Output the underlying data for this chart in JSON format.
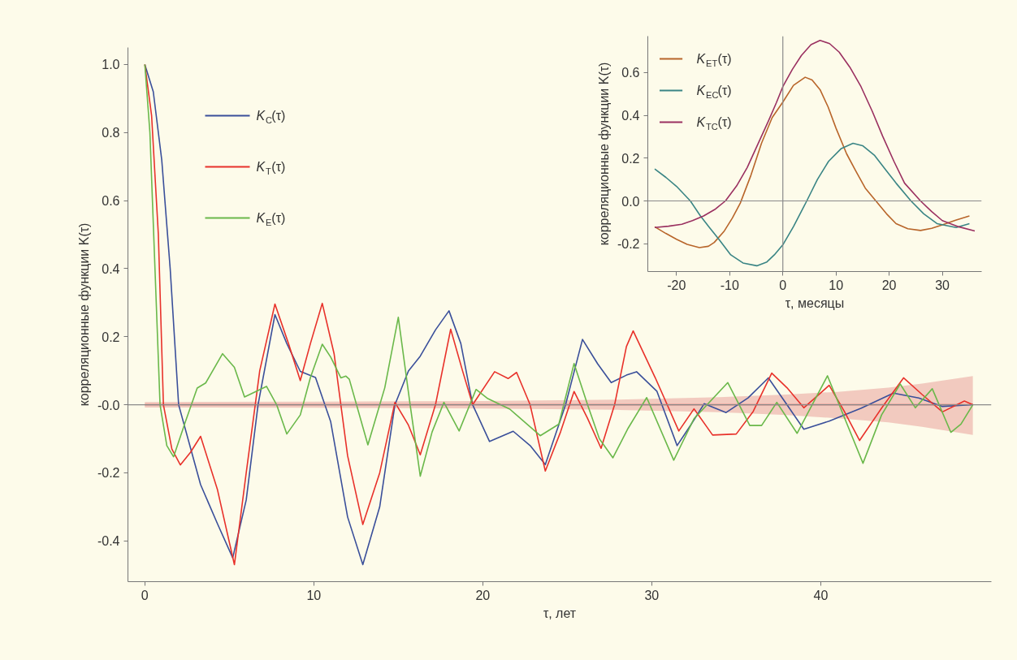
{
  "chart_data": [
    {
      "type": "line",
      "xlabel": "τ, лет",
      "ylabel": "корреляционные функции K(τ)",
      "xlim": [
        -1.0,
        50.1
      ],
      "ylim": [
        -0.52,
        1.05
      ],
      "xticks": [
        0,
        10,
        20,
        30,
        40
      ],
      "yticks": [
        {
          "value": -0.4,
          "label": "-0.4"
        },
        {
          "value": -0.2,
          "label": "-0.2"
        },
        {
          "value": 0,
          "label": "-0.0"
        },
        {
          "value": 0.2,
          "label": "0.2"
        },
        {
          "value": 0.4,
          "label": "0.4"
        },
        {
          "value": 0.6,
          "label": "0.6"
        },
        {
          "value": 0.8,
          "label": "0.8"
        },
        {
          "value": 1.0,
          "label": "1.0"
        }
      ],
      "legend": "top left",
      "ref_lines": [
        {
          "axis": "y",
          "value": 0,
          "color": "#8a8a8a"
        }
      ],
      "series": [
        {
          "color": "#e89a94",
          "x": [
            0,
            10,
            20,
            28,
            34,
            38,
            41,
            44,
            46,
            49
          ],
          "values": [
            0,
            0,
            0,
            0,
            0,
            0,
            0,
            0,
            0,
            0
          ],
          "lower": [
            -0.008,
            -0.009,
            -0.011,
            -0.015,
            -0.022,
            -0.03,
            -0.04,
            -0.052,
            -0.065,
            -0.089
          ],
          "upper": [
            0.008,
            0.009,
            0.011,
            0.015,
            0.022,
            0.03,
            0.038,
            0.05,
            0.062,
            0.084
          ]
        },
        {
          "name": "K$_{C}$(τ)",
          "color": "#3a4f9a",
          "x": [
            0,
            0.5,
            1.0,
            1.5,
            2.0,
            3.3,
            4.3,
            5.2,
            6.0,
            6.7,
            7.7,
            8.4,
            9.2,
            10.1,
            11.0,
            12.0,
            12.9,
            13.9,
            14.8,
            15.6,
            16.3,
            17.2,
            18.0,
            18.7,
            19.4,
            20.4,
            21.8,
            22.8,
            23.7,
            24.9,
            25.9,
            26.8,
            27.6,
            28.5,
            29.1,
            30.3,
            31.5,
            32.3,
            33.1,
            34.4,
            35.7,
            36.9,
            38.0,
            39.0,
            40.5,
            42.4,
            44.3,
            45.8,
            47.2,
            49.0
          ],
          "values": [
            1.0,
            0.92,
            0.72,
            0.4,
            0.0,
            -0.235,
            -0.35,
            -0.45,
            -0.28,
            0.0,
            0.265,
            0.18,
            0.098,
            0.08,
            -0.05,
            -0.33,
            -0.47,
            -0.3,
            0.0,
            0.099,
            0.143,
            0.22,
            0.276,
            0.18,
            0.0,
            -0.108,
            -0.078,
            -0.12,
            -0.176,
            0.0,
            0.192,
            0.12,
            0.065,
            0.087,
            0.097,
            0.04,
            -0.12,
            -0.06,
            0.003,
            -0.023,
            0.02,
            0.079,
            0.0,
            -0.072,
            -0.048,
            -0.01,
            0.034,
            0.02,
            -0.005,
            0.0
          ]
        },
        {
          "name": "K$_{T}$(τ)",
          "color": "#e8312a",
          "x": [
            0,
            0.4,
            0.8,
            1.1,
            1.6,
            2.1,
            2.7,
            3.3,
            4.3,
            5.3,
            6.0,
            6.8,
            7.7,
            8.5,
            9.2,
            9.8,
            10.5,
            11.2,
            12.0,
            12.9,
            13.9,
            14.8,
            15.6,
            16.3,
            17.2,
            18.1,
            18.8,
            19.4,
            20.7,
            21.5,
            22.0,
            22.8,
            23.7,
            24.6,
            25.4,
            26.2,
            27.0,
            27.8,
            28.5,
            28.9,
            30.2,
            31.6,
            32.5,
            33.6,
            35.0,
            36.0,
            37.1,
            38.0,
            39.0,
            40.5,
            41.4,
            42.3,
            43.6,
            44.9,
            46.0,
            47.2,
            48.5,
            49.0
          ],
          "values": [
            1.0,
            0.85,
            0.5,
            0.0,
            -0.13,
            -0.177,
            -0.14,
            -0.093,
            -0.25,
            -0.47,
            -0.2,
            0.1,
            0.296,
            0.18,
            0.071,
            0.18,
            0.298,
            0.15,
            -0.15,
            -0.352,
            -0.2,
            0.007,
            -0.06,
            -0.147,
            0.0,
            0.222,
            0.1,
            0.0,
            0.097,
            0.077,
            0.095,
            0.0,
            -0.195,
            -0.08,
            0.039,
            -0.04,
            -0.128,
            0.0,
            0.171,
            0.217,
            0.08,
            -0.077,
            -0.012,
            -0.089,
            -0.086,
            -0.02,
            0.093,
            0.05,
            -0.009,
            0.057,
            -0.02,
            -0.105,
            -0.01,
            0.079,
            0.03,
            -0.021,
            0.011,
            0.0
          ]
        },
        {
          "name": "K$_{E}$(τ)",
          "color": "#6ab84a",
          "x": [
            0,
            0.3,
            0.6,
            0.9,
            1.3,
            1.7,
            2.4,
            3.1,
            3.6,
            4.6,
            5.3,
            5.9,
            7.2,
            7.8,
            8.4,
            9.2,
            9.8,
            10.5,
            11.0,
            11.6,
            11.9,
            12.1,
            13.2,
            14.2,
            15.0,
            15.7,
            16.3,
            17.0,
            17.7,
            18.6,
            19.6,
            20.3,
            21.6,
            23.4,
            24.5,
            25.4,
            26.2,
            26.9,
            27.7,
            28.6,
            29.7,
            31.3,
            32.5,
            34.5,
            35.8,
            36.5,
            37.4,
            38.6,
            40.4,
            41.5,
            42.5,
            43.6,
            44.7,
            45.6,
            46.6,
            47.7,
            48.3,
            49.0
          ],
          "values": [
            1.0,
            0.8,
            0.4,
            0.0,
            -0.12,
            -0.153,
            -0.05,
            0.049,
            0.064,
            0.15,
            0.11,
            0.023,
            0.054,
            0.0,
            -0.086,
            -0.03,
            0.08,
            0.178,
            0.14,
            0.079,
            0.084,
            0.075,
            -0.118,
            0.05,
            0.257,
            0.0,
            -0.21,
            -0.08,
            0.007,
            -0.077,
            0.045,
            0.018,
            -0.013,
            -0.091,
            -0.057,
            0.121,
            0.0,
            -0.1,
            -0.156,
            -0.069,
            0.021,
            -0.163,
            -0.041,
            0.065,
            -0.061,
            -0.061,
            0.007,
            -0.084,
            0.085,
            -0.05,
            -0.172,
            -0.03,
            0.061,
            -0.009,
            0.047,
            -0.081,
            -0.057,
            0.0
          ]
        }
      ]
    },
    {
      "type": "line",
      "xlabel": "τ, месяцы",
      "ylabel": "корреляционные функции K(τ)",
      "xlim": [
        -25.4,
        37.4
      ],
      "ylim": [
        -0.33,
        0.77
      ],
      "xticks": [
        -20,
        -10,
        0,
        10,
        20,
        30
      ],
      "yticks": [
        {
          "value": -0.2,
          "label": "-0.2"
        },
        {
          "value": 0,
          "label": "0.0"
        },
        {
          "value": 0.2,
          "label": "0.2"
        },
        {
          "value": 0.4,
          "label": "0.4"
        },
        {
          "value": 0.6,
          "label": "0.6"
        }
      ],
      "legend": "top left",
      "ref_lines": [
        {
          "axis": "y",
          "value": 0,
          "color": "#8a8a8a"
        },
        {
          "axis": "x",
          "value": 0,
          "color": "#8a8a8a"
        }
      ],
      "series": [
        {
          "name": "K$_{ET}$(τ)",
          "color": "#b8652a",
          "x": [
            -24.1,
            -22,
            -20,
            -18,
            -15.7,
            -14,
            -12.9,
            -11,
            -9.5,
            -8,
            -6,
            -4,
            -2,
            0,
            2,
            4.2,
            5.5,
            7,
            8.5,
            10,
            12,
            13.7,
            15.5,
            17.5,
            19.5,
            21.3,
            23.5,
            25.9,
            28,
            30,
            32.5,
            35.1
          ],
          "values": [
            -0.121,
            -0.152,
            -0.179,
            -0.203,
            -0.218,
            -0.212,
            -0.194,
            -0.14,
            -0.08,
            -0.01,
            0.12,
            0.27,
            0.39,
            0.462,
            0.54,
            0.578,
            0.565,
            0.52,
            0.44,
            0.34,
            0.22,
            0.141,
            0.06,
            0,
            -0.06,
            -0.106,
            -0.13,
            -0.138,
            -0.128,
            -0.112,
            -0.09,
            -0.07
          ]
        },
        {
          "name": "K$_{EC}$(τ)",
          "color": "#3a8585",
          "x": [
            -24.1,
            -22,
            -20,
            -17.4,
            -15.5,
            -13.9,
            -12,
            -9.8,
            -7.5,
            -4.9,
            -3,
            -1.6,
            0,
            2,
            4.5,
            6.5,
            8.6,
            11,
            13.2,
            15,
            17.2,
            19.5,
            21.3,
            24.1,
            26.5,
            29,
            32.6,
            35.1
          ],
          "values": [
            0.149,
            0.11,
            0.068,
            0,
            -0.07,
            -0.121,
            -0.18,
            -0.252,
            -0.29,
            -0.303,
            -0.285,
            -0.252,
            -0.205,
            -0.12,
            0,
            0.1,
            0.185,
            0.245,
            0.269,
            0.258,
            0.214,
            0.14,
            0.083,
            0,
            -0.06,
            -0.106,
            -0.124,
            -0.106
          ]
        },
        {
          "name": "K$_{TC}$(τ)",
          "color": "#9a3060",
          "x": [
            -24.1,
            -21.5,
            -19,
            -17,
            -14.9,
            -12.8,
            -10.8,
            -8.7,
            -6.7,
            -4.7,
            -2.7,
            -1.2,
            0,
            1.8,
            3.5,
            5.3,
            7,
            8.8,
            10.6,
            12.6,
            14.7,
            16.8,
            18.8,
            20.9,
            22.9,
            25.9,
            28,
            30,
            33.1,
            36.1
          ],
          "values": [
            -0.124,
            -0.118,
            -0.109,
            -0.092,
            -0.07,
            -0.04,
            0,
            0.07,
            0.156,
            0.265,
            0.374,
            0.46,
            0.534,
            0.615,
            0.68,
            0.73,
            0.75,
            0.735,
            0.695,
            0.625,
            0.534,
            0.42,
            0.301,
            0.185,
            0.083,
            0,
            -0.05,
            -0.092,
            -0.121,
            -0.14
          ]
        }
      ]
    }
  ]
}
